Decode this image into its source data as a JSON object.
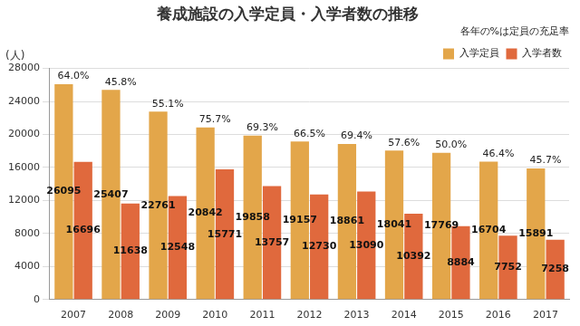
{
  "chart_data": {
    "type": "bar",
    "title": "養成施設の入学定員・入学者数の推移",
    "y_label": "(人)",
    "annotation": "各年の%は定員の充足率",
    "categories": [
      "2007",
      "2008",
      "2009",
      "2010",
      "2011",
      "2012",
      "2013",
      "2014",
      "2015",
      "2016",
      "2017"
    ],
    "series": [
      {
        "name": "入学定員",
        "color": "#e3a64a",
        "values": [
          26095,
          25407,
          22761,
          20842,
          19858,
          19157,
          18861,
          18041,
          17769,
          16704,
          15891
        ]
      },
      {
        "name": "入学者数",
        "color": "#e0693d",
        "values": [
          16696,
          11638,
          12548,
          15771,
          13757,
          12730,
          13090,
          10392,
          8884,
          7752,
          7258
        ]
      }
    ],
    "fill_rate": {
      "values": [
        64.0,
        45.8,
        55.1,
        75.7,
        69.3,
        66.5,
        69.4,
        57.6,
        50.0,
        46.4,
        45.7
      ],
      "value_labels": [
        "64.0%",
        "45.8%",
        "55.1%",
        "75.7%",
        "69.3%",
        "66.5%",
        "69.4%",
        "57.6%",
        "50.0%",
        "46.4%",
        "45.7%"
      ]
    },
    "ylim": [
      0,
      28000
    ],
    "yticks": [
      0,
      4000,
      8000,
      12000,
      16000,
      20000,
      24000,
      28000
    ],
    "grid": true,
    "legend": "top-right",
    "data_labels": true
  }
}
